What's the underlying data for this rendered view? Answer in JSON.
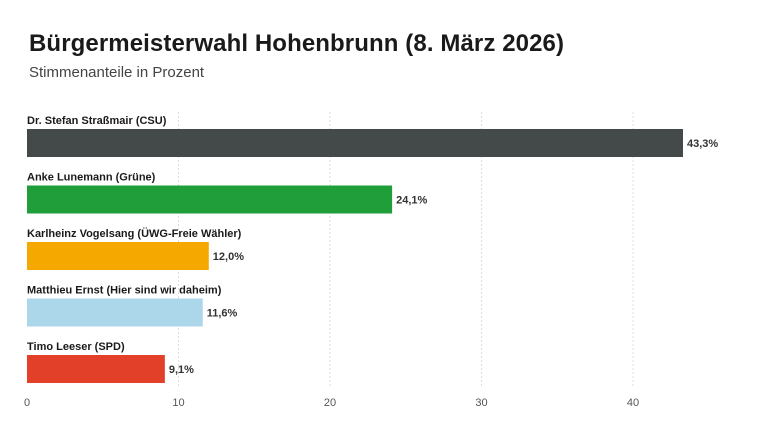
{
  "title": "Bürgermeisterwahl Hohenbrunn (8. März 2026)",
  "subtitle": "Stimmenanteile in Prozent",
  "chart_data": {
    "type": "bar",
    "orientation": "horizontal",
    "title": "Bürgermeisterwahl Hohenbrunn (8. März 2026)",
    "subtitle": "Stimmenanteile in Prozent",
    "xlabel": "",
    "ylabel": "",
    "xlim": [
      0,
      45
    ],
    "x_ticks": [
      0,
      10,
      20,
      30,
      40
    ],
    "grid": true,
    "categories": [
      "Dr. Stefan Straßmair (CSU)",
      "Anke Lunemann (Grüne)",
      "Karlheinz Vogelsang (ÜWG-Freie Wähler)",
      "Matthieu Ernst (Hier sind wir daheim)",
      "Timo Leeser (SPD)"
    ],
    "values": [
      43.3,
      24.1,
      12.0,
      11.6,
      9.1
    ],
    "value_labels": [
      "43,3%",
      "24,1%",
      "12,0%",
      "11,6%",
      "9,1%"
    ],
    "colors": [
      "#444a4a",
      "#1f9e3a",
      "#f5a800",
      "#acd6ea",
      "#e3402a"
    ]
  }
}
